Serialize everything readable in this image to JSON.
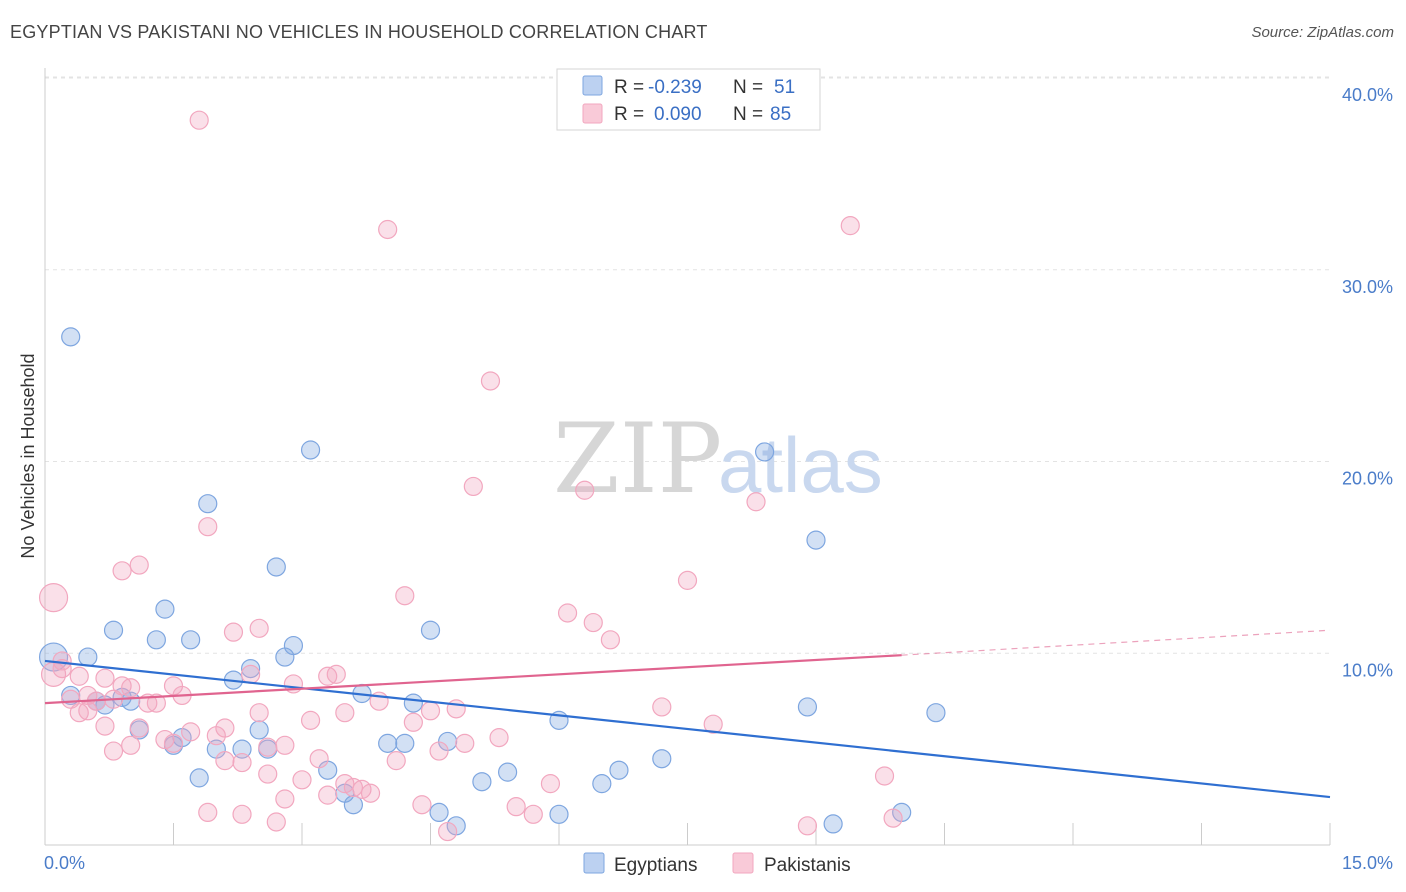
{
  "header": {
    "title": "EGYPTIAN VS PAKISTANI NO VEHICLES IN HOUSEHOLD CORRELATION CHART",
    "source": "Source: ZipAtlas.com"
  },
  "watermark": {
    "zip": "ZIP",
    "atlas": "atlas"
  },
  "legend": {
    "rows": [
      {
        "r_label": "R =",
        "r_value": "-0.239",
        "n_label": "N =",
        "n_value": "51",
        "color": "#7ea6e0"
      },
      {
        "r_label": "R =",
        "r_value": "0.090",
        "n_label": "N =",
        "n_value": "85",
        "color": "#f2a7bf"
      }
    ]
  },
  "chart_data": {
    "type": "scatter",
    "title": "EGYPTIAN VS PAKISTANI NO VEHICLES IN HOUSEHOLD CORRELATION CHART",
    "xlabel": "",
    "ylabel": "No Vehicles in Household",
    "xlim": [
      0,
      15
    ],
    "ylim": [
      0,
      40
    ],
    "x_tick_labels": [
      "0.0%",
      "15.0%"
    ],
    "y_ticks": [
      10,
      20,
      30,
      40
    ],
    "y_tick_labels": [
      "10.0%",
      "20.0%",
      "30.0%",
      "40.0%"
    ],
    "grid": true,
    "legend_position": "top-center",
    "series": [
      {
        "name": "Egyptians",
        "color": "#7ea6e0",
        "line_color": "#2f6fd1",
        "trend": {
          "x": [
            0,
            15
          ],
          "y": [
            9.6,
            2.5
          ],
          "dashed_from": null
        },
        "points": [
          [
            0.1,
            9.8,
            14
          ],
          [
            0.3,
            26.5,
            9
          ],
          [
            0.5,
            9.8,
            9
          ],
          [
            0.3,
            7.8,
            9
          ],
          [
            0.6,
            7.5,
            9
          ],
          [
            0.7,
            7.3,
            9
          ],
          [
            0.8,
            11.2,
            9
          ],
          [
            0.9,
            7.7,
            9
          ],
          [
            1.0,
            7.5,
            9
          ],
          [
            1.1,
            6.0,
            9
          ],
          [
            1.3,
            10.7,
            9
          ],
          [
            1.4,
            12.3,
            9
          ],
          [
            1.5,
            5.2,
            9
          ],
          [
            1.6,
            5.6,
            9
          ],
          [
            1.7,
            10.7,
            9
          ],
          [
            1.8,
            3.5,
            9
          ],
          [
            1.9,
            17.8,
            9
          ],
          [
            2.0,
            5.0,
            9
          ],
          [
            2.2,
            8.6,
            9
          ],
          [
            2.3,
            5.0,
            9
          ],
          [
            2.4,
            9.2,
            9
          ],
          [
            2.5,
            6.0,
            9
          ],
          [
            2.6,
            5.0,
            9
          ],
          [
            2.7,
            14.5,
            9
          ],
          [
            2.8,
            9.8,
            9
          ],
          [
            2.9,
            10.4,
            9
          ],
          [
            3.1,
            20.6,
            9
          ],
          [
            3.3,
            3.9,
            9
          ],
          [
            3.5,
            2.7,
            9
          ],
          [
            3.6,
            2.1,
            9
          ],
          [
            3.7,
            7.9,
            9
          ],
          [
            4.0,
            5.3,
            9
          ],
          [
            4.2,
            5.3,
            9
          ],
          [
            4.3,
            7.4,
            9
          ],
          [
            4.5,
            11.2,
            9
          ],
          [
            4.6,
            1.7,
            9
          ],
          [
            4.7,
            5.4,
            9
          ],
          [
            4.8,
            1.0,
            9
          ],
          [
            5.1,
            3.3,
            9
          ],
          [
            5.4,
            3.8,
            9
          ],
          [
            6.0,
            1.6,
            9
          ],
          [
            6.0,
            6.5,
            9
          ],
          [
            6.5,
            3.2,
            9
          ],
          [
            6.7,
            3.9,
            9
          ],
          [
            7.2,
            4.5,
            9
          ],
          [
            8.4,
            20.5,
            9
          ],
          [
            8.9,
            7.2,
            9
          ],
          [
            9.0,
            15.9,
            9
          ],
          [
            9.2,
            1.1,
            9
          ],
          [
            10.0,
            1.7,
            9
          ],
          [
            10.4,
            6.9,
            9
          ]
        ]
      },
      {
        "name": "Pakistanis",
        "color": "#f2a7bf",
        "line_color": "#e0648f",
        "trend": {
          "x": [
            0,
            10.0
          ],
          "y": [
            7.4,
            9.9
          ],
          "dashed_to": [
            15,
            11.2
          ]
        },
        "points": [
          [
            0.1,
            12.9,
            14
          ],
          [
            0.1,
            8.9,
            12
          ],
          [
            0.2,
            9.2,
            9
          ],
          [
            0.3,
            7.6,
            9
          ],
          [
            0.4,
            8.8,
            9
          ],
          [
            0.4,
            6.9,
            9
          ],
          [
            0.5,
            7.0,
            9
          ],
          [
            0.5,
            7.8,
            9
          ],
          [
            0.6,
            7.5,
            9
          ],
          [
            0.7,
            8.7,
            9
          ],
          [
            0.7,
            6.2,
            9
          ],
          [
            0.8,
            7.6,
            9
          ],
          [
            0.9,
            8.3,
            9
          ],
          [
            0.9,
            14.3,
            9
          ],
          [
            1.0,
            8.2,
            9
          ],
          [
            1.0,
            5.2,
            9
          ],
          [
            1.1,
            14.6,
            9
          ],
          [
            1.1,
            6.1,
            9
          ],
          [
            1.2,
            7.4,
            9
          ],
          [
            1.3,
            7.4,
            9
          ],
          [
            1.4,
            5.5,
            9
          ],
          [
            1.5,
            8.3,
            9
          ],
          [
            1.6,
            7.8,
            9
          ],
          [
            1.7,
            5.9,
            9
          ],
          [
            1.8,
            37.8,
            9
          ],
          [
            1.9,
            16.6,
            9
          ],
          [
            1.9,
            1.7,
            9
          ],
          [
            2.0,
            5.7,
            9
          ],
          [
            2.1,
            6.1,
            9
          ],
          [
            2.2,
            11.1,
            9
          ],
          [
            2.3,
            4.3,
            9
          ],
          [
            2.3,
            1.6,
            9
          ],
          [
            2.4,
            8.9,
            9
          ],
          [
            2.5,
            6.9,
            9
          ],
          [
            2.5,
            11.3,
            9
          ],
          [
            2.6,
            3.7,
            9
          ],
          [
            2.6,
            5.1,
            9
          ],
          [
            2.7,
            1.2,
            9
          ],
          [
            2.8,
            5.2,
            9
          ],
          [
            2.9,
            8.4,
            9
          ],
          [
            3.0,
            3.4,
            9
          ],
          [
            3.1,
            6.5,
            9
          ],
          [
            3.2,
            4.5,
            9
          ],
          [
            3.3,
            2.6,
            9
          ],
          [
            3.3,
            8.8,
            9
          ],
          [
            3.4,
            8.9,
            9
          ],
          [
            3.5,
            3.2,
            9
          ],
          [
            3.6,
            3.0,
            9
          ],
          [
            3.7,
            2.9,
            9
          ],
          [
            3.8,
            2.7,
            9
          ],
          [
            3.9,
            7.5,
            9
          ],
          [
            4.0,
            32.1,
            9
          ],
          [
            4.1,
            4.4,
            9
          ],
          [
            4.2,
            13.0,
            9
          ],
          [
            4.3,
            6.4,
            9
          ],
          [
            4.4,
            2.1,
            9
          ],
          [
            4.5,
            7.0,
            9
          ],
          [
            4.6,
            4.9,
            9
          ],
          [
            4.7,
            0.7,
            9
          ],
          [
            4.8,
            7.1,
            9
          ],
          [
            5.0,
            18.7,
            9
          ],
          [
            5.2,
            24.2,
            9
          ],
          [
            5.3,
            5.6,
            9
          ],
          [
            5.5,
            2.0,
            9
          ],
          [
            5.7,
            1.6,
            9
          ],
          [
            5.9,
            3.2,
            9
          ],
          [
            6.1,
            12.1,
            9
          ],
          [
            6.3,
            18.5,
            9
          ],
          [
            6.4,
            11.6,
            9
          ],
          [
            6.6,
            10.7,
            9
          ],
          [
            7.2,
            7.2,
            9
          ],
          [
            7.5,
            13.8,
            9
          ],
          [
            7.8,
            6.3,
            9
          ],
          [
            8.3,
            17.9,
            9
          ],
          [
            8.9,
            1.0,
            9
          ],
          [
            9.4,
            32.3,
            9
          ],
          [
            9.8,
            3.6,
            9
          ],
          [
            9.9,
            1.4,
            9
          ],
          [
            0.2,
            9.6,
            9
          ],
          [
            1.5,
            5.3,
            9
          ],
          [
            2.1,
            4.4,
            9
          ],
          [
            2.8,
            2.4,
            9
          ],
          [
            3.5,
            6.9,
            9
          ],
          [
            4.9,
            5.3,
            9
          ],
          [
            0.8,
            4.9,
            9
          ]
        ]
      }
    ]
  }
}
